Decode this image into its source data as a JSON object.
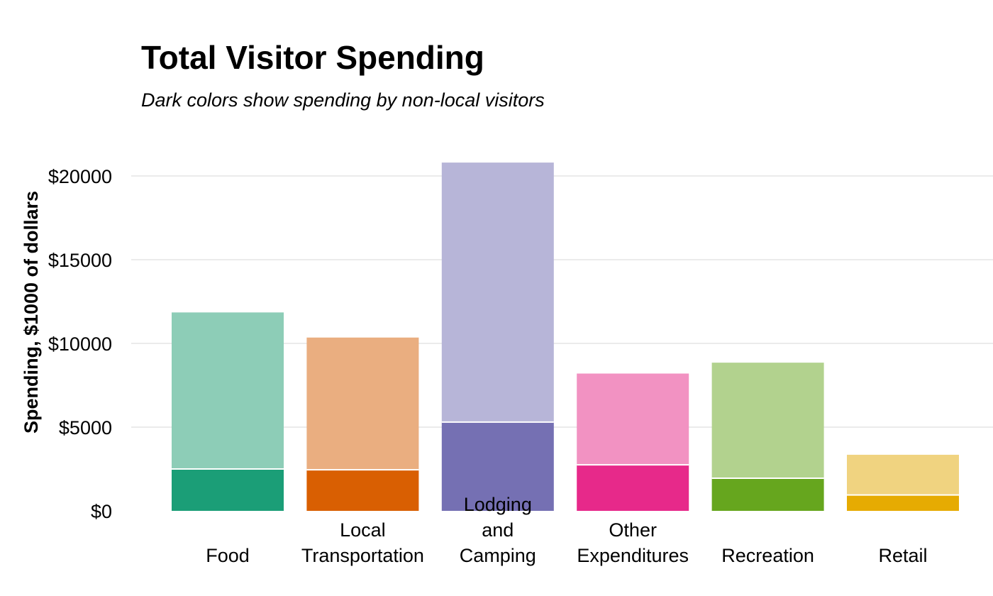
{
  "chart_data": {
    "type": "bar",
    "stacked": true,
    "title": "Total Visitor Spending",
    "subtitle": "Dark colors show spending by non-local visitors",
    "ylabel": "Spending, $1000 of dollars",
    "xlabel": "",
    "ylim": [
      0,
      21000
    ],
    "yticks": [
      0,
      5000,
      10000,
      15000,
      20000
    ],
    "ytick_labels": [
      "$0",
      "$5000",
      "$10000",
      "$15000",
      "$20000"
    ],
    "grid": true,
    "legend": "none",
    "categories": [
      {
        "label": [
          "Food"
        ],
        "nonlocal": 2500,
        "total": 11850,
        "dark": "#1b9e77",
        "light": "#8dcdb7"
      },
      {
        "label": [
          "Local",
          "Transportation"
        ],
        "nonlocal": 2450,
        "total": 10350,
        "dark": "#d95f02",
        "light": "#eaae80"
      },
      {
        "label": [
          "Lodging",
          "and",
          "Camping"
        ],
        "nonlocal": 5300,
        "total": 20800,
        "dark": "#7570b3",
        "light": "#b7b5d8"
      },
      {
        "label": [
          "Other",
          "Expenditures"
        ],
        "nonlocal": 2750,
        "total": 8200,
        "dark": "#e7298a",
        "light": "#f292c2"
      },
      {
        "label": [
          "Recreation"
        ],
        "nonlocal": 1950,
        "total": 8850,
        "dark": "#66a61e",
        "light": "#b2d28e"
      },
      {
        "label": [
          "Retail"
        ],
        "nonlocal": 950,
        "total": 3350,
        "dark": "#e6ab02",
        "light": "#f0d380"
      }
    ]
  }
}
